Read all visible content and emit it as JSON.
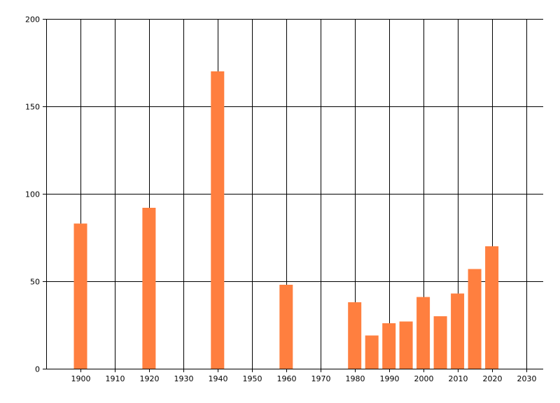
{
  "chart_data": {
    "type": "bar",
    "x": [
      1900,
      1920,
      1940,
      1960,
      1980,
      1985,
      1990,
      1995,
      2000,
      2005,
      2010,
      2015,
      2020
    ],
    "values": [
      83,
      92,
      170,
      48,
      38,
      19,
      26,
      27,
      41,
      30,
      43,
      57,
      70
    ],
    "xlim": [
      1890,
      2035
    ],
    "ylim": [
      0,
      200
    ],
    "x_ticks": [
      1900,
      1910,
      1920,
      1930,
      1940,
      1950,
      1960,
      1970,
      1980,
      1990,
      2000,
      2010,
      2020,
      2030
    ],
    "y_ticks": [
      0,
      50,
      100,
      150,
      200
    ],
    "grid": true,
    "bar_color": "#ff7f3f",
    "title": "",
    "xlabel": "",
    "ylabel": ""
  }
}
